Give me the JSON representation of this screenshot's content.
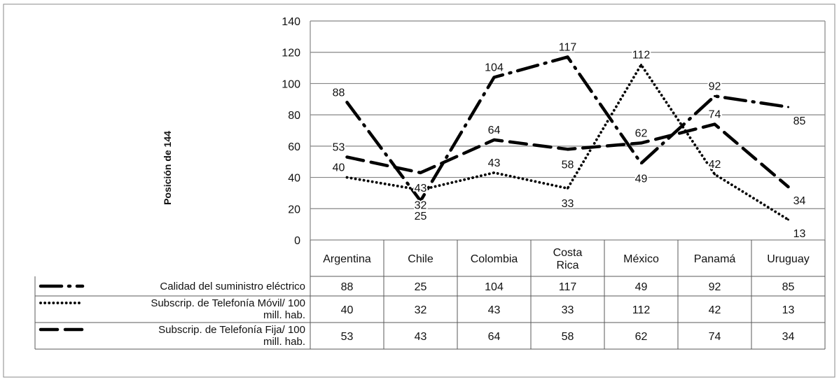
{
  "chart_data": {
    "type": "line",
    "ylabel": "Posición de 144",
    "ylim": [
      0,
      140
    ],
    "yticks": [
      0,
      20,
      40,
      60,
      80,
      100,
      120,
      140
    ],
    "grid": true,
    "legend_placement": "data-table-below",
    "categories": [
      "Argentina",
      "Chile",
      "Colombia",
      "Costa Rica",
      "México",
      "Panamá",
      "Uruguay"
    ],
    "series": [
      {
        "name": "Calidad del suministro eléctrico",
        "legend_lines": [
          "Calidad del suministro eléctrico"
        ],
        "style": "long-dash-dot",
        "values": [
          88,
          25,
          104,
          117,
          49,
          92,
          85
        ]
      },
      {
        "name": "Subscrip. de Telefonía Móvil/ 100 mill. hab.",
        "legend_lines": [
          "Subscrip. de Telefonía Móvil/ 100",
          "mill. hab."
        ],
        "style": "dotted",
        "values": [
          40,
          32,
          43,
          33,
          112,
          42,
          13
        ]
      },
      {
        "name": "Subscrip. de Telefonía Fija/ 100 mill. hab.",
        "legend_lines": [
          "Subscrip. de Telefonía Fija/ 100",
          "mill. hab."
        ],
        "style": "dashed",
        "values": [
          53,
          43,
          64,
          58,
          62,
          74,
          34
        ]
      }
    ]
  },
  "colors": {
    "line": "#000000",
    "grid": "#868686",
    "table_border": "#5a5a5a"
  }
}
